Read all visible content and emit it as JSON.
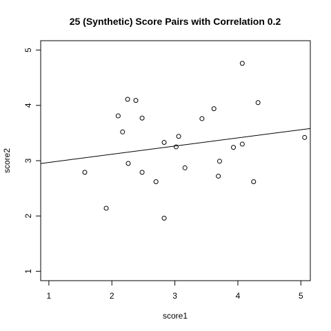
{
  "chart_data": {
    "type": "scatter",
    "title": "25 (Synthetic) Score Pairs with Correlation 0.2",
    "xlabel": "score1",
    "ylabel": "score2",
    "xlim": [
      0.87,
      5.15
    ],
    "ylim": [
      0.83,
      5.17
    ],
    "x_ticks": [
      1,
      2,
      3,
      4,
      5
    ],
    "y_ticks": [
      1,
      2,
      3,
      4,
      5
    ],
    "grid": false,
    "legend": "none",
    "points": [
      {
        "x": 1.57,
        "y": 2.79
      },
      {
        "x": 1.91,
        "y": 2.14
      },
      {
        "x": 2.1,
        "y": 3.81
      },
      {
        "x": 2.17,
        "y": 3.52
      },
      {
        "x": 2.25,
        "y": 4.11
      },
      {
        "x": 2.26,
        "y": 2.95
      },
      {
        "x": 2.38,
        "y": 4.09
      },
      {
        "x": 2.48,
        "y": 3.77
      },
      {
        "x": 2.48,
        "y": 2.79
      },
      {
        "x": 2.7,
        "y": 2.62
      },
      {
        "x": 2.83,
        "y": 3.33
      },
      {
        "x": 2.83,
        "y": 1.96
      },
      {
        "x": 3.02,
        "y": 3.25
      },
      {
        "x": 3.06,
        "y": 3.44
      },
      {
        "x": 3.16,
        "y": 2.87
      },
      {
        "x": 3.43,
        "y": 3.76
      },
      {
        "x": 3.62,
        "y": 3.94
      },
      {
        "x": 3.69,
        "y": 2.72
      },
      {
        "x": 3.71,
        "y": 2.99
      },
      {
        "x": 3.93,
        "y": 3.24
      },
      {
        "x": 4.07,
        "y": 3.3
      },
      {
        "x": 4.07,
        "y": 4.76
      },
      {
        "x": 4.25,
        "y": 2.62
      },
      {
        "x": 4.32,
        "y": 4.05
      },
      {
        "x": 5.06,
        "y": 3.42
      }
    ],
    "fit_line": {
      "intercept": 2.82,
      "slope": 0.148
    }
  }
}
